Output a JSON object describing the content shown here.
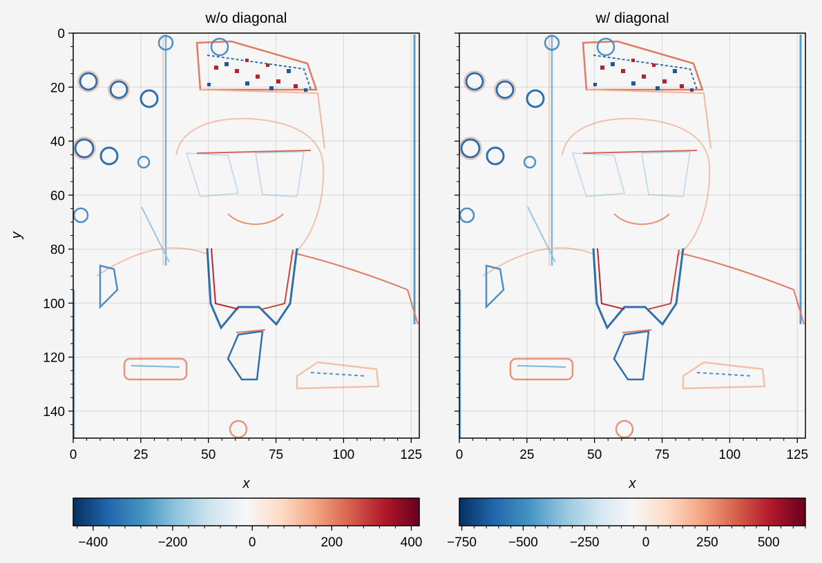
{
  "chart_data": [
    {
      "type": "heatmap",
      "title": "w/o diagonal",
      "xlabel": "x",
      "ylabel": "y",
      "x_ticks": [
        0,
        25,
        50,
        75,
        100,
        125
      ],
      "y_ticks": [
        0,
        20,
        40,
        60,
        80,
        100,
        120,
        140
      ],
      "x_range": [
        0,
        128
      ],
      "y_range": [
        150,
        0
      ],
      "grid": true,
      "colormap": "RdBu_r",
      "colorbar": {
        "ticks": [
          -400,
          -200,
          0,
          200,
          400
        ],
        "range": [
          -450,
          420
        ],
        "location": "bottom"
      },
      "tick_labels": {
        "x": [
          "0",
          "25",
          "50",
          "75",
          "100",
          "125"
        ],
        "y": [
          "0",
          "20",
          "40",
          "60",
          "80",
          "100",
          "120",
          "140"
        ],
        "cbar": [
          "−400",
          "−200",
          "0",
          "200",
          "400"
        ]
      }
    },
    {
      "type": "heatmap",
      "title": "w/ diagonal",
      "xlabel": "x",
      "ylabel": "",
      "x_ticks": [
        0,
        25,
        50,
        75,
        100,
        125
      ],
      "y_ticks": [
        0,
        20,
        40,
        60,
        80,
        100,
        120,
        140
      ],
      "x_range": [
        0,
        128
      ],
      "y_range": [
        150,
        0
      ],
      "grid": true,
      "colormap": "RdBu_r",
      "colorbar": {
        "ticks": [
          -750,
          -500,
          -250,
          0,
          250,
          500
        ],
        "range": [
          -760,
          650
        ],
        "location": "bottom"
      },
      "tick_labels": {
        "x": [
          "0",
          "25",
          "50",
          "75",
          "100",
          "125"
        ],
        "y": [],
        "cbar": [
          "−750",
          "−500",
          "−250",
          "0",
          "250",
          "500"
        ]
      }
    }
  ]
}
